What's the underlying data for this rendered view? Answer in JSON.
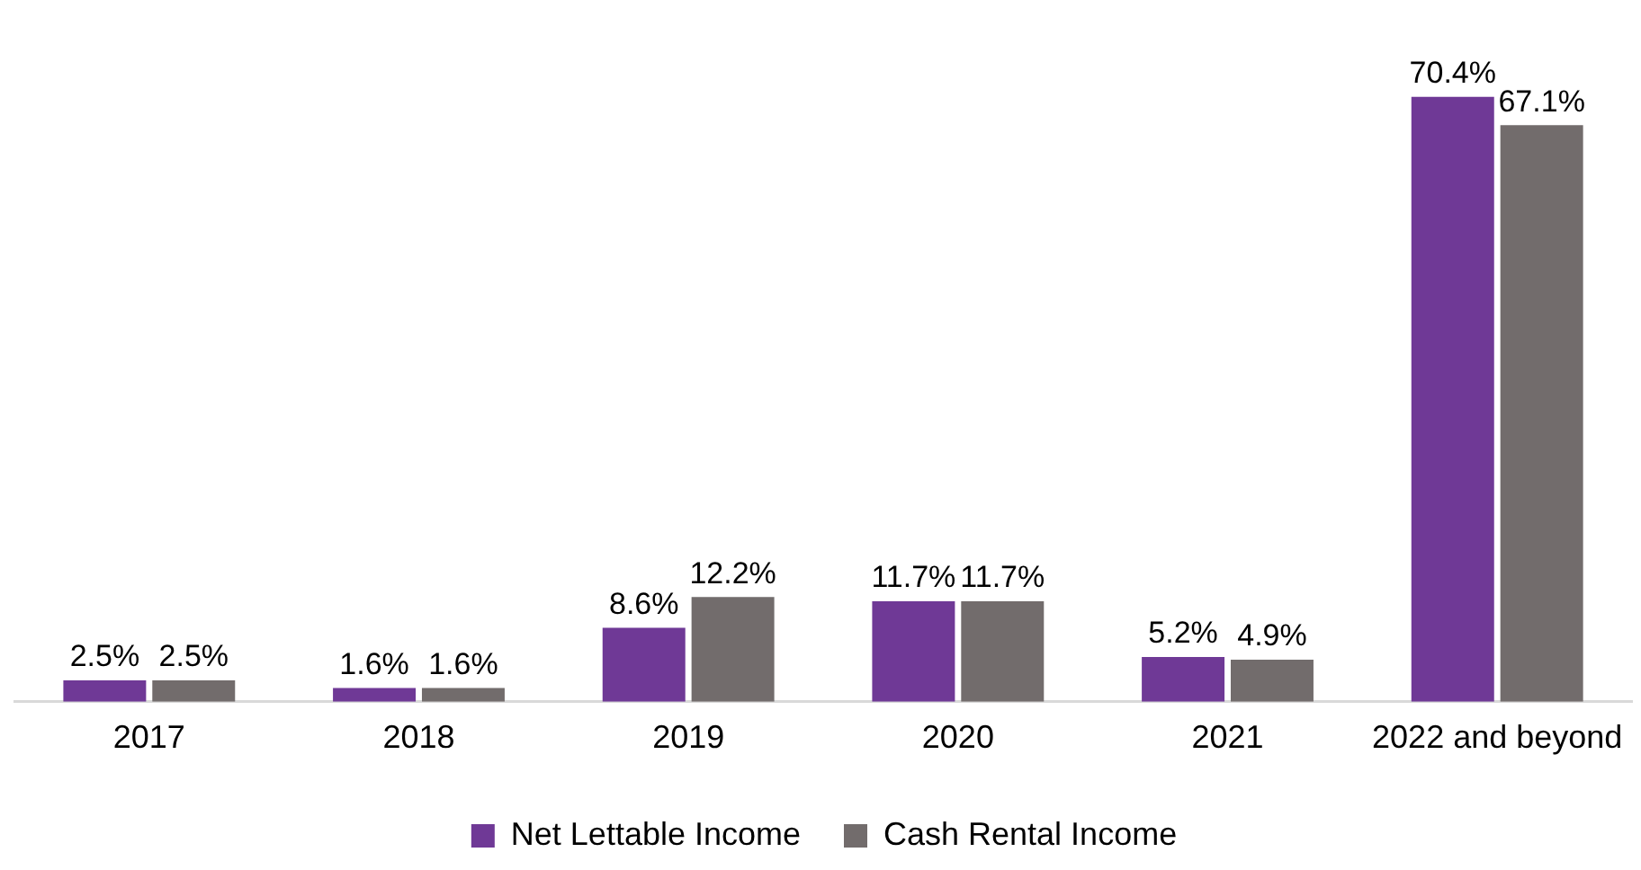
{
  "chart_data": {
    "type": "bar",
    "categories": [
      "2017",
      "2018",
      "2019",
      "2020",
      "2021",
      "2022 and beyond"
    ],
    "series": [
      {
        "name": "Net Lettable Income",
        "color": "#6f3996",
        "values": [
          2.5,
          1.6,
          8.6,
          11.7,
          5.2,
          70.4
        ],
        "value_labels": [
          "2.5%",
          "1.6%",
          "8.6%",
          "11.7%",
          "5.2%",
          "70.4%"
        ]
      },
      {
        "name": "Cash Rental Income",
        "color": "#726c6c",
        "values": [
          2.5,
          1.6,
          12.2,
          11.7,
          4.9,
          67.1
        ],
        "value_labels": [
          "2.5%",
          "1.6%",
          "12.2%",
          "11.7%",
          "4.9%",
          "67.1%"
        ]
      }
    ],
    "legend": "bottom",
    "grid": false
  }
}
